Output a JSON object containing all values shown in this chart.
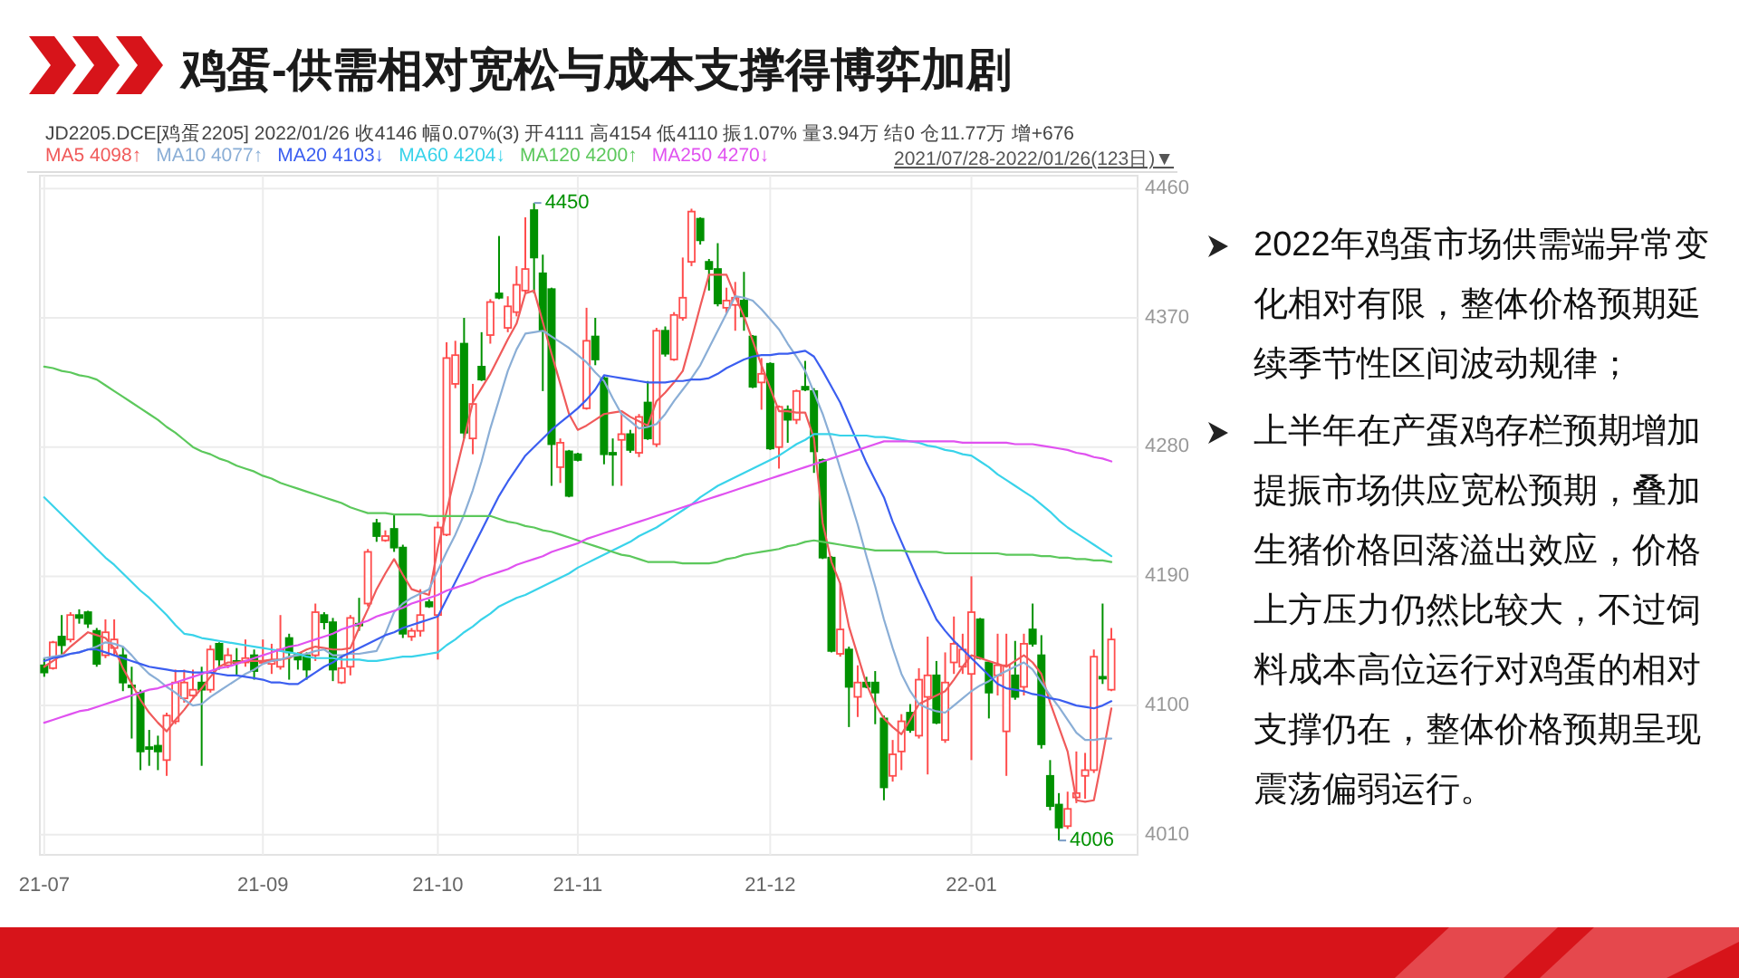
{
  "chart_data": {
    "type": "candlestick",
    "title": "鸡蛋-供需相对宽松与成本支撑得博弈加剧",
    "annotations": [
      "JD2205.DCE[鸡蛋2205]   2022/01/26   收4146  幅0.07%(3)   开4111   高4154   低4110   振1.07%   量3.94万   结0   仓11.77万   增+676",
      "2021/07/28-2022/01/26(123日)▼",
      "2022年鸡蛋市场供需端异常变化相对有限，整体价格预期延续季节性区间波动规律；",
      "上半年在产蛋鸡存栏预期增加提振市场供应宽松预期，叠加生猪价格回落溢出效应，价格上方压力仍然比较大，不过饲料成本高位运行对鸡蛋的相对支撑仍在，整体价格预期呈现震荡偏弱运行。",
      "4450",
      "4006"
    ],
    "categories": [
      "21-07",
      null,
      null,
      null,
      null,
      null,
      null,
      null,
      null,
      null,
      null,
      null,
      null,
      null,
      null,
      null,
      null,
      null,
      null,
      null,
      null,
      null,
      null,
      null,
      null,
      "21-09",
      null,
      null,
      null,
      null,
      null,
      null,
      null,
      null,
      null,
      null,
      null,
      null,
      null,
      null,
      null,
      null,
      null,
      null,
      null,
      "21-10",
      null,
      null,
      null,
      null,
      null,
      null,
      null,
      null,
      null,
      null,
      null,
      null,
      null,
      null,
      null,
      "21-11",
      null,
      null,
      null,
      null,
      null,
      null,
      null,
      null,
      null,
      null,
      null,
      null,
      null,
      null,
      null,
      null,
      null,
      null,
      null,
      null,
      null,
      "21-12",
      null,
      null,
      null,
      null,
      null,
      null,
      null,
      null,
      null,
      null,
      null,
      null,
      null,
      null,
      null,
      null,
      null,
      null,
      null,
      null,
      null,
      null,
      "22-01",
      null,
      null,
      null,
      null,
      null,
      null,
      null,
      null,
      null,
      null,
      null,
      null,
      null,
      null,
      null,
      null
    ],
    "ohlc": [
      [
        4128,
        4133,
        4120,
        4123
      ],
      [
        4126,
        4145,
        4125,
        4144
      ],
      [
        4148,
        4163,
        4135,
        4142
      ],
      [
        4146,
        4165,
        4144,
        4163
      ],
      [
        4163,
        4167,
        4157,
        4161
      ],
      [
        4165,
        4166,
        4154,
        4157
      ],
      [
        4152,
        4154,
        4127,
        4129
      ],
      [
        4135,
        4160,
        4133,
        4151
      ],
      [
        4140,
        4160,
        4135,
        4146
      ],
      [
        4135,
        4141,
        4110,
        4116
      ],
      [
        4114,
        4127,
        4077,
        4113
      ],
      [
        4109,
        4111,
        4055,
        4068
      ],
      [
        4071,
        4083,
        4058,
        4070
      ],
      [
        4072,
        4079,
        4055,
        4068
      ],
      [
        4062,
        4095,
        4051,
        4093
      ],
      [
        4089,
        4125,
        4087,
        4116
      ],
      [
        4105,
        4125,
        4102,
        4116
      ],
      [
        4107,
        4125,
        4106,
        4111
      ],
      [
        4116,
        4127,
        4058,
        4111
      ],
      [
        4111,
        4142,
        4109,
        4139
      ],
      [
        4143,
        4144,
        4125,
        4132
      ],
      [
        4128,
        4140,
        4126,
        4135
      ],
      [
        4131,
        4140,
        4121,
        4130
      ],
      [
        4130,
        4146,
        4127,
        4133
      ],
      [
        4135,
        4139,
        4118,
        4124
      ],
      [
        4130,
        4146,
        4129,
        4131
      ],
      [
        4129,
        4143,
        4122,
        4131
      ],
      [
        4127,
        4163,
        4125,
        4139
      ],
      [
        4147,
        4150,
        4118,
        4137
      ],
      [
        4136,
        4137,
        4125,
        4132
      ],
      [
        4135,
        4137,
        4118,
        4125
      ],
      [
        4135,
        4171,
        4131,
        4165
      ],
      [
        4163,
        4165,
        4153,
        4158
      ],
      [
        4158,
        4161,
        4117,
        4125
      ],
      [
        4116,
        4135,
        4115,
        4126
      ],
      [
        4127,
        4163,
        4121,
        4161
      ],
      [
        4157,
        4175,
        4152,
        4156
      ],
      [
        4171,
        4209,
        4169,
        4207
      ],
      [
        4227,
        4230,
        4214,
        4218
      ],
      [
        4215,
        4222,
        4214,
        4218
      ],
      [
        4223,
        4233,
        4207,
        4210
      ],
      [
        4210,
        4212,
        4147,
        4150
      ],
      [
        4148,
        4154,
        4145,
        4152
      ],
      [
        4152,
        4181,
        4148,
        4163
      ],
      [
        4172,
        4174,
        4168,
        4169
      ],
      [
        4163,
        4228,
        4132,
        4224
      ],
      [
        4219,
        4353,
        4218,
        4342
      ],
      [
        4324,
        4354,
        4321,
        4344
      ],
      [
        4352,
        4370,
        4286,
        4290
      ],
      [
        4286,
        4324,
        4275,
        4310
      ],
      [
        4336,
        4360,
        4326,
        4327
      ],
      [
        4358,
        4383,
        4352,
        4381
      ],
      [
        4387,
        4427,
        4383,
        4384
      ],
      [
        4363,
        4385,
        4360,
        4378
      ],
      [
        4374,
        4406,
        4371,
        4393
      ],
      [
        4389,
        4440,
        4387,
        4404
      ],
      [
        4445,
        4450,
        4387,
        4412
      ],
      [
        4401,
        4414,
        4319,
        4361
      ],
      [
        4390,
        4391,
        4253,
        4282
      ],
      [
        4266,
        4286,
        4255,
        4283
      ],
      [
        4277,
        4278,
        4245,
        4246
      ],
      [
        4275,
        4276,
        4270,
        4271
      ],
      [
        4307,
        4377,
        4306,
        4354
      ],
      [
        4357,
        4370,
        4337,
        4341
      ],
      [
        4328,
        4329,
        4268,
        4275
      ],
      [
        4276,
        4286,
        4253,
        4275
      ],
      [
        4285,
        4303,
        4253,
        4289
      ],
      [
        4289,
        4292,
        4276,
        4278
      ],
      [
        4276,
        4303,
        4273,
        4301
      ],
      [
        4311,
        4326,
        4285,
        4286
      ],
      [
        4282,
        4363,
        4280,
        4361
      ],
      [
        4361,
        4364,
        4343,
        4345
      ],
      [
        4341,
        4374,
        4340,
        4372
      ],
      [
        4370,
        4412,
        4368,
        4384
      ],
      [
        4409,
        4446,
        4406,
        4444
      ],
      [
        4439,
        4440,
        4421,
        4424
      ],
      [
        4409,
        4411,
        4389,
        4404
      ],
      [
        4404,
        4422,
        4378,
        4380
      ],
      [
        4377,
        4391,
        4373,
        4382
      ],
      [
        4379,
        4395,
        4361,
        4384
      ],
      [
        4382,
        4402,
        4361,
        4371
      ],
      [
        4357,
        4358,
        4321,
        4322
      ],
      [
        4325,
        4342,
        4306,
        4331
      ],
      [
        4338,
        4339,
        4278,
        4279
      ],
      [
        4280,
        4309,
        4265,
        4308
      ],
      [
        4306,
        4309,
        4283,
        4299
      ],
      [
        4299,
        4320,
        4296,
        4319
      ],
      [
        4322,
        4340,
        4319,
        4320
      ],
      [
        4319,
        4321,
        4262,
        4277
      ],
      [
        4271,
        4272,
        4202,
        4203
      ],
      [
        4203,
        4204,
        4137,
        4138
      ],
      [
        4136,
        4185,
        4134,
        4153
      ],
      [
        4139,
        4141,
        4085,
        4113
      ],
      [
        4106,
        4128,
        4092,
        4116
      ],
      [
        4116,
        4120,
        4112,
        4113
      ],
      [
        4116,
        4124,
        4087,
        4109
      ],
      [
        4091,
        4093,
        4034,
        4043
      ],
      [
        4051,
        4076,
        4047,
        4066
      ],
      [
        4068,
        4094,
        4055,
        4089
      ],
      [
        4095,
        4101,
        4081,
        4083
      ],
      [
        4079,
        4126,
        4077,
        4118
      ],
      [
        4106,
        4148,
        4052,
        4121
      ],
      [
        4121,
        4131,
        4087,
        4088
      ],
      [
        4076,
        4137,
        4074,
        4116
      ],
      [
        4130,
        4162,
        4122,
        4143
      ],
      [
        4127,
        4150,
        4122,
        4139
      ],
      [
        4122,
        4190,
        4062,
        4165
      ],
      [
        4160,
        4161,
        4132,
        4133
      ],
      [
        4130,
        4131,
        4091,
        4109
      ],
      [
        4121,
        4150,
        4107,
        4128
      ],
      [
        4082,
        4150,
        4051,
        4128
      ],
      [
        4121,
        4145,
        4104,
        4106
      ],
      [
        4113,
        4150,
        4107,
        4143
      ],
      [
        4153,
        4171,
        4141,
        4143
      ],
      [
        4135,
        4149,
        4070,
        4073
      ],
      [
        4051,
        4062,
        4027,
        4030
      ],
      [
        4031,
        4039,
        4006,
        4015
      ],
      [
        4016,
        4040,
        4014,
        4028
      ],
      [
        4036,
        4068,
        4032,
        4039
      ],
      [
        4051,
        4067,
        4035,
        4055
      ],
      [
        4055,
        4139,
        4053,
        4134
      ],
      [
        4120,
        4171,
        4115,
        4119
      ],
      [
        4111,
        4154,
        4110,
        4146
      ]
    ],
    "colors": [
      "#009100",
      "#ff4d4d",
      "#009100",
      "#ff4d4d",
      "#009100",
      "#009100",
      "#009100",
      "#ff4d4d",
      "#ff4d4d",
      "#009100",
      "#009100",
      "#009100",
      "#009100",
      "#009100",
      "#ff4d4d",
      "#ff4d4d",
      "#ff4d4d",
      "#ff4d4d",
      "#009100",
      "#ff4d4d",
      "#009100",
      "#ff4d4d",
      "#009100",
      "#ff4d4d",
      "#009100",
      "#ff4d4d",
      "#ff4d4d",
      "#ff4d4d",
      "#009100",
      "#009100",
      "#009100",
      "#ff4d4d",
      "#009100",
      "#009100",
      "#ff4d4d",
      "#ff4d4d",
      "#009100",
      "#ff4d4d",
      "#009100",
      "#ff4d4d",
      "#009100",
      "#009100",
      "#ff4d4d",
      "#ff4d4d",
      "#009100",
      "#ff4d4d",
      "#ff4d4d",
      "#ff4d4d",
      "#009100",
      "#ff4d4d",
      "#009100",
      "#ff4d4d",
      "#009100",
      "#ff4d4d",
      "#ff4d4d",
      "#ff4d4d",
      "#009100",
      "#009100",
      "#009100",
      "#ff4d4d",
      "#009100",
      "#009100",
      "#ff4d4d",
      "#009100",
      "#009100",
      "#009100",
      "#ff4d4d",
      "#009100",
      "#ff4d4d",
      "#009100",
      "#ff4d4d",
      "#009100",
      "#ff4d4d",
      "#ff4d4d",
      "#ff4d4d",
      "#009100",
      "#009100",
      "#009100",
      "#ff4d4d",
      "#ff4d4d",
      "#009100",
      "#009100",
      "#ff4d4d",
      "#009100",
      "#ff4d4d",
      "#009100",
      "#ff4d4d",
      "#009100",
      "#009100",
      "#009100",
      "#009100",
      "#ff4d4d",
      "#009100",
      "#ff4d4d",
      "#009100",
      "#009100",
      "#009100",
      "#ff4d4d",
      "#ff4d4d",
      "#009100",
      "#ff4d4d",
      "#ff4d4d",
      "#009100",
      "#ff4d4d",
      "#ff4d4d",
      "#ff4d4d",
      "#ff4d4d",
      "#009100",
      "#009100",
      "#ff4d4d",
      "#ff4d4d",
      "#009100",
      "#ff4d4d",
      "#009100",
      "#009100",
      "#009100",
      "#009100",
      "#ff4d4d",
      "#ff4d4d",
      "#ff4d4d",
      "#ff4d4d",
      "#009100",
      "#ff4d4d"
    ],
    "series": [
      {
        "name": "MA5 4098↑",
        "type": "line",
        "color": "#f05a5a",
        "values": [
          4127,
          4131,
          4135,
          4141,
          4146,
          4151,
          4149,
          4147,
          4140,
          4126,
          4115,
          4104,
          4095,
          4088,
          4082,
          4090,
          4097,
          4105,
          4112,
          4120,
          4127,
          4130,
          4130,
          4131,
          4131,
          4131,
          4132,
          4132,
          4133,
          4136,
          4139,
          4141,
          4140,
          4139,
          4139,
          4140,
          4154,
          4167,
          4181,
          4192,
          4202,
          4191,
          4181,
          4179,
          4177,
          4210,
          4235,
          4261,
          4286,
          4311,
          4321,
          4331,
          4343,
          4355,
          4366,
          4387,
          4389,
          4367,
          4345,
          4324,
          4303,
          4292,
          4295,
          4299,
          4303,
          4304,
          4305,
          4301,
          4298,
          4295,
          4312,
          4318,
          4325,
          4333,
          4355,
          4378,
          4400,
          4400,
          4400,
          4385,
          4371,
          4354,
          4337,
          4321,
          4305,
          4305,
          4304,
          4304,
          4286,
          4227,
          4200,
          4185,
          4155,
          4135,
          4115,
          4101,
          4091,
          4085,
          4080,
          4090,
          4101,
          4104,
          4107,
          4110,
          4118,
          4127,
          4135,
          4133,
          4131,
          4129,
          4127,
          4131,
          4135,
          4130,
          4122,
          4102,
          4085,
          4068,
          4034,
          4033,
          4034,
          4065,
          4098
        ]
      },
      {
        "name": "MA10 4077↑",
        "type": "line",
        "color": "#8aaed6",
        "values": [
          4133,
          4134,
          4135,
          4136,
          4137,
          4139,
          4141,
          4144,
          4143,
          4141,
          4135,
          4128,
          4122,
          4118,
          4113,
          4109,
          4104,
          4100,
          4101,
          4106,
          4110,
          4114,
          4118,
          4122,
          4125,
          4129,
          4131,
          4132,
          4134,
          4135,
          4136,
          4138,
          4139,
          4135,
          4135,
          4136,
          4136,
          4137,
          4138,
          4150,
          4165,
          4171,
          4175,
          4178,
          4181,
          4194,
          4207,
          4219,
          4233,
          4250,
          4270,
          4293,
          4313,
          4333,
          4348,
          4359,
          4360,
          4361,
          4357,
          4353,
          4349,
          4344,
          4339,
          4332,
          4326,
          4314,
          4303,
          4298,
          4293,
          4294,
          4296,
          4303,
          4312,
          4320,
          4328,
          4337,
          4349,
          4361,
          4373,
          4385,
          4384,
          4382,
          4376,
          4369,
          4362,
          4352,
          4343,
          4333,
          4318,
          4303,
          4285,
          4265,
          4246,
          4226,
          4204,
          4183,
          4160,
          4140,
          4122,
          4110,
          4101,
          4098,
          4096,
          4095,
          4100,
          4105,
          4110,
          4114,
          4117,
          4121,
          4124,
          4127,
          4130,
          4125,
          4116,
          4107,
          4099,
          4090,
          4081,
          4076,
          4076,
          4077,
          4077
        ]
      },
      {
        "name": "MA20 4103↓",
        "type": "line",
        "color": "#3b5ef0",
        "values": [
          4131,
          4133,
          4134,
          4136,
          4137,
          4139,
          4139,
          4137,
          4135,
          4133,
          4131,
          4129,
          4127,
          4126,
          4125,
          4124,
          4124,
          4123,
          4123,
          4123,
          4122,
          4121,
          4121,
          4120,
          4119,
          4118,
          4116,
          4116,
          4115,
          4115,
          4119,
          4123,
          4127,
          4130,
          4134,
          4137,
          4140,
          4143,
          4146,
          4149,
          4151,
          4154,
          4156,
          4158,
          4160,
          4162,
          4174,
          4186,
          4198,
          4210,
          4222,
          4234,
          4246,
          4256,
          4265,
          4274,
          4280,
          4286,
          4292,
          4297,
          4302,
          4307,
          4313,
          4320,
          4330,
          4329,
          4328,
          4327,
          4326,
          4325,
          4325,
          4325,
          4326,
          4326,
          4327,
          4327,
          4328,
          4331,
          4335,
          4338,
          4341,
          4343,
          4344,
          4344,
          4345,
          4345,
          4346,
          4347,
          4343,
          4333,
          4322,
          4311,
          4297,
          4283,
          4269,
          4257,
          4245,
          4228,
          4214,
          4200,
          4186,
          4173,
          4160,
          4152,
          4145,
          4139,
          4133,
          4127,
          4121,
          4115,
          4112,
          4111,
          4110,
          4108,
          4107,
          4105,
          4104,
          4102,
          4100,
          4099,
          4098,
          4100,
          4103
        ]
      },
      {
        "name": "MA60 4204↓",
        "type": "line",
        "color": "#39d3ea",
        "values": [
          4245,
          4239,
          4233,
          4227,
          4221,
          4215,
          4209,
          4203,
          4198,
          4192,
          4186,
          4180,
          4175,
          4169,
          4163,
          4156,
          4150,
          4149,
          4147,
          4146,
          4145,
          4144,
          4143,
          4142,
          4141,
          4140,
          4139,
          4138,
          4137,
          4136,
          4134,
          4133,
          4133,
          4133,
          4132,
          4132,
          4132,
          4131,
          4131,
          4132,
          4133,
          4134,
          4134,
          4135,
          4136,
          4137,
          4142,
          4146,
          4151,
          4155,
          4160,
          4164,
          4169,
          4172,
          4175,
          4177,
          4180,
          4183,
          4186,
          4189,
          4192,
          4196,
          4199,
          4202,
          4205,
          4208,
          4211,
          4214,
          4218,
          4221,
          4224,
          4228,
          4232,
          4236,
          4240,
          4245,
          4249,
          4253,
          4256,
          4259,
          4262,
          4265,
          4268,
          4271,
          4274,
          4278,
          4282,
          4285,
          4289,
          4289,
          4289,
          4288,
          4288,
          4288,
          4288,
          4287,
          4287,
          4286,
          4285,
          4284,
          4283,
          4281,
          4280,
          4278,
          4277,
          4275,
          4274,
          4270,
          4266,
          4261,
          4257,
          4253,
          4249,
          4245,
          4240,
          4235,
          4229,
          4224,
          4220,
          4216,
          4212,
          4208,
          4204
        ]
      },
      {
        "name": "MA120 4200↑",
        "type": "line",
        "color": "#5cc85c",
        "values": [
          4336,
          4335,
          4333,
          4332,
          4330,
          4329,
          4327,
          4323,
          4319,
          4315,
          4311,
          4307,
          4303,
          4299,
          4294,
          4290,
          4285,
          4280,
          4277,
          4275,
          4272,
          4270,
          4267,
          4265,
          4263,
          4260,
          4258,
          4255,
          4253,
          4251,
          4249,
          4247,
          4245,
          4243,
          4241,
          4238,
          4236,
          4234,
          4234,
          4234,
          4233,
          4233,
          4233,
          4233,
          4232,
          4232,
          4232,
          4232,
          4232,
          4232,
          4232,
          4232,
          4230,
          4228,
          4227,
          4225,
          4224,
          4222,
          4221,
          4219,
          4217,
          4215,
          4213,
          4211,
          4209,
          4207,
          4205,
          4204,
          4202,
          4200,
          4200,
          4200,
          4200,
          4199,
          4199,
          4199,
          4199,
          4200,
          4202,
          4203,
          4205,
          4206,
          4207,
          4208,
          4209,
          4211,
          4212,
          4214,
          4215,
          4214,
          4213,
          4212,
          4211,
          4210,
          4209,
          4208,
          4208,
          4208,
          4208,
          4207,
          4207,
          4207,
          4207,
          4206,
          4206,
          4206,
          4206,
          4206,
          4206,
          4206,
          4205,
          4205,
          4205,
          4205,
          4204,
          4204,
          4203,
          4203,
          4202,
          4202,
          4201,
          4201,
          4200
        ]
      },
      {
        "name": "MA250 4270↓",
        "type": "line",
        "color": "#e052f0",
        "values": [
          4088,
          4090,
          4092,
          4094,
          4096,
          4097,
          4099,
          4101,
          4103,
          4105,
          4107,
          4109,
          4111,
          4112,
          4114,
          4116,
          4118,
          4120,
          4122,
          4124,
          4126,
          4127,
          4129,
          4131,
          4133,
          4135,
          4137,
          4139,
          4141,
          4142,
          4144,
          4146,
          4148,
          4150,
          4153,
          4155,
          4157,
          4159,
          4162,
          4164,
          4166,
          4168,
          4171,
          4173,
          4175,
          4177,
          4180,
          4182,
          4184,
          4186,
          4189,
          4191,
          4193,
          4195,
          4198,
          4200,
          4202,
          4204,
          4207,
          4209,
          4211,
          4213,
          4216,
          4218,
          4220,
          4222,
          4224,
          4226,
          4228,
          4230,
          4232,
          4234,
          4236,
          4238,
          4240,
          4242,
          4244,
          4246,
          4248,
          4250,
          4252,
          4254,
          4256,
          4258,
          4260,
          4262,
          4264,
          4266,
          4268,
          4270,
          4272,
          4274,
          4276,
          4278,
          4280,
          4282,
          4284,
          4284,
          4284,
          4284,
          4284,
          4284,
          4284,
          4284,
          4284,
          4283,
          4283,
          4283,
          4283,
          4283,
          4283,
          4282,
          4282,
          4282,
          4281,
          4280,
          4279,
          4278,
          4276,
          4275,
          4273,
          4272,
          4270
        ]
      }
    ],
    "ylim": [
      3996,
      4469
    ],
    "yticks": [
      4010,
      4100,
      4190,
      4280,
      4370,
      4460
    ],
    "grid": true,
    "legend": "top left"
  }
}
